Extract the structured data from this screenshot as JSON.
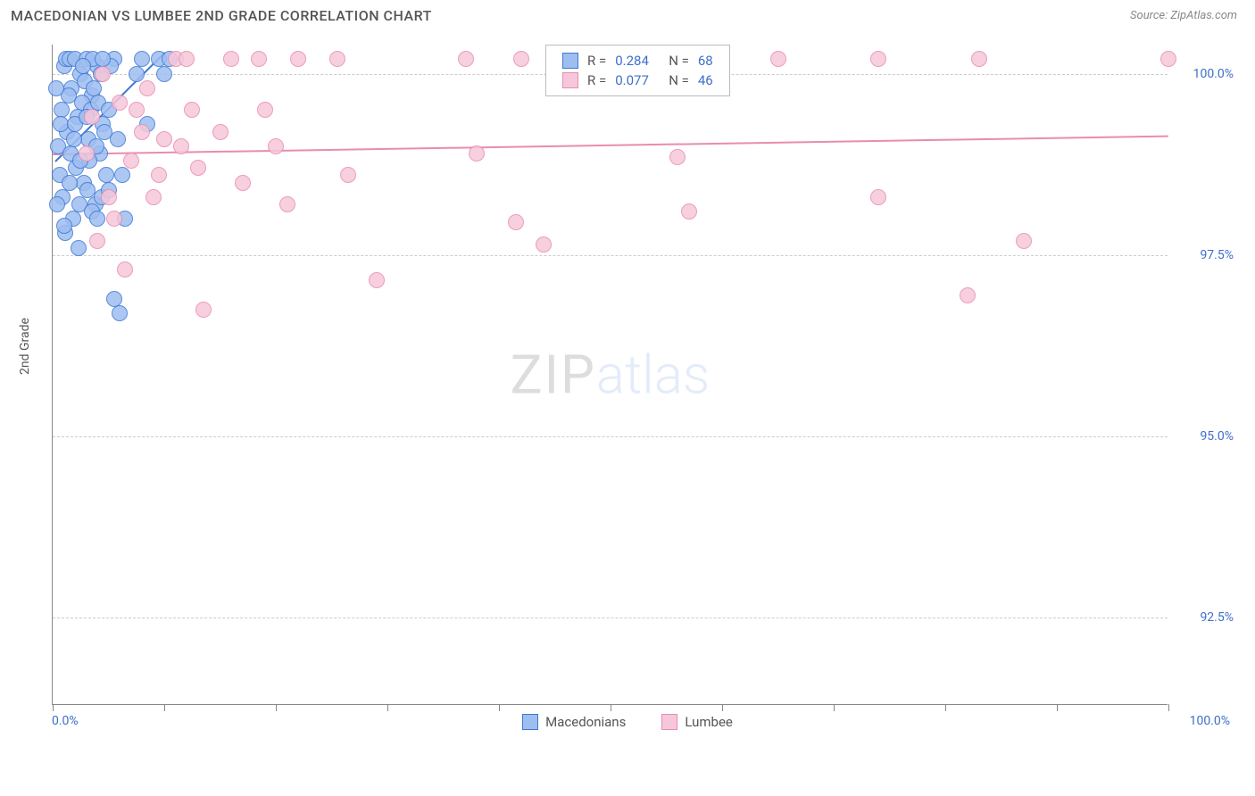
{
  "title": "MACEDONIAN VS LUMBEE 2ND GRADE CORRELATION CHART",
  "source": "Source: ZipAtlas.com",
  "ylabel": "2nd Grade",
  "chart": {
    "type": "scatter",
    "xlim": [
      0,
      100
    ],
    "ylim": [
      91.3,
      100.4
    ],
    "xlabel_min": "0.0%",
    "xlabel_max": "100.0%",
    "ygridlines": [
      {
        "value": 92.5,
        "label": "92.5%"
      },
      {
        "value": 95.0,
        "label": "95.0%"
      },
      {
        "value": 97.5,
        "label": "97.5%"
      },
      {
        "value": 100.0,
        "label": "100.0%"
      }
    ],
    "xticks": [
      0,
      10,
      20,
      30,
      40,
      50,
      60,
      70,
      80,
      90,
      100
    ],
    "background_color": "#ffffff",
    "grid_color": "#cccccc",
    "axis_color": "#888888",
    "tick_label_color": "#3e6fc9",
    "marker_radius": 9,
    "marker_stroke_width": 1.5,
    "marker_fill_opacity": 0.28,
    "trend_line_width": 2,
    "series": [
      {
        "id": "macedonians",
        "label": "Macedonians",
        "stroke_color": "#3e78d6",
        "fill_color": "#9ebef0",
        "R": "0.284",
        "N": "68",
        "trend": {
          "x1": 0.2,
          "y1": 98.8,
          "x2": 10,
          "y2": 100.3
        },
        "points": [
          [
            0.5,
            99.0
          ],
          [
            0.8,
            99.5
          ],
          [
            1.0,
            100.1
          ],
          [
            1.2,
            100.2
          ],
          [
            1.5,
            100.2
          ],
          [
            1.7,
            99.8
          ],
          [
            2.0,
            100.2
          ],
          [
            2.2,
            99.4
          ],
          [
            2.5,
            100.0
          ],
          [
            2.8,
            98.5
          ],
          [
            3.0,
            100.2
          ],
          [
            3.2,
            99.1
          ],
          [
            3.5,
            99.7
          ],
          [
            3.8,
            98.2
          ],
          [
            4.0,
            100.1
          ],
          [
            4.2,
            98.9
          ],
          [
            4.5,
            99.3
          ],
          [
            0.6,
            98.6
          ],
          [
            0.9,
            98.3
          ],
          [
            1.1,
            97.8
          ],
          [
            1.3,
            99.2
          ],
          [
            1.6,
            98.9
          ],
          [
            1.8,
            98.0
          ],
          [
            2.1,
            98.7
          ],
          [
            2.3,
            97.6
          ],
          [
            2.6,
            99.6
          ],
          [
            2.9,
            99.9
          ],
          [
            3.1,
            98.4
          ],
          [
            3.4,
            99.5
          ],
          [
            3.6,
            100.2
          ],
          [
            3.9,
            99.0
          ],
          [
            4.1,
            99.6
          ],
          [
            4.4,
            98.3
          ],
          [
            5.5,
            100.2
          ],
          [
            5.5,
            96.9
          ],
          [
            6.0,
            96.7
          ],
          [
            6.5,
            98.0
          ],
          [
            7.5,
            100.0
          ],
          [
            8.0,
            100.2
          ],
          [
            8.5,
            99.3
          ],
          [
            9.5,
            100.2
          ],
          [
            10.0,
            100.0
          ],
          [
            10.5,
            100.2
          ],
          [
            0.7,
            99.3
          ],
          [
            1.4,
            99.7
          ],
          [
            1.9,
            99.1
          ],
          [
            2.4,
            98.2
          ],
          [
            2.7,
            100.1
          ],
          [
            3.3,
            98.8
          ],
          [
            3.7,
            99.8
          ],
          [
            4.3,
            100.0
          ],
          [
            4.6,
            99.2
          ],
          [
            4.8,
            98.6
          ],
          [
            5.0,
            99.5
          ],
          [
            5.2,
            100.1
          ],
          [
            0.4,
            98.2
          ],
          [
            0.3,
            99.8
          ],
          [
            1.0,
            97.9
          ],
          [
            1.5,
            98.5
          ],
          [
            2.0,
            99.3
          ],
          [
            2.5,
            98.8
          ],
          [
            3.0,
            99.4
          ],
          [
            3.5,
            98.1
          ],
          [
            4.0,
            98.0
          ],
          [
            4.5,
            100.2
          ],
          [
            5.0,
            98.4
          ],
          [
            5.8,
            99.1
          ],
          [
            6.2,
            98.6
          ]
        ]
      },
      {
        "id": "lumbee",
        "label": "Lumbee",
        "stroke_color": "#e88cb0",
        "fill_color": "#f6c7da",
        "R": "0.077",
        "N": "46",
        "trend": {
          "x1": 0,
          "y1": 98.9,
          "x2": 100,
          "y2": 99.15
        },
        "points": [
          [
            3.0,
            98.9
          ],
          [
            4.0,
            97.7
          ],
          [
            5.0,
            98.3
          ],
          [
            6.0,
            99.6
          ],
          [
            6.5,
            97.3
          ],
          [
            7.0,
            98.8
          ],
          [
            8.0,
            99.2
          ],
          [
            8.5,
            99.8
          ],
          [
            9.0,
            98.3
          ],
          [
            10.0,
            99.1
          ],
          [
            11.0,
            100.2
          ],
          [
            12.0,
            100.2
          ],
          [
            12.5,
            99.5
          ],
          [
            13.0,
            98.7
          ],
          [
            13.5,
            96.75
          ],
          [
            15.0,
            99.2
          ],
          [
            16.0,
            100.2
          ],
          [
            17.0,
            98.5
          ],
          [
            18.5,
            100.2
          ],
          [
            19.0,
            99.5
          ],
          [
            20.0,
            99.0
          ],
          [
            21.0,
            98.2
          ],
          [
            22.0,
            100.2
          ],
          [
            25.5,
            100.2
          ],
          [
            26.5,
            98.6
          ],
          [
            29.0,
            97.15
          ],
          [
            37.0,
            100.2
          ],
          [
            38.0,
            98.9
          ],
          [
            41.5,
            97.95
          ],
          [
            42.0,
            100.2
          ],
          [
            44.0,
            97.65
          ],
          [
            56.0,
            98.85
          ],
          [
            57.0,
            98.1
          ],
          [
            65.0,
            100.2
          ],
          [
            74.0,
            100.2
          ],
          [
            74.0,
            98.3
          ],
          [
            82.0,
            96.95
          ],
          [
            83.0,
            100.2
          ],
          [
            87.0,
            97.7
          ],
          [
            100.0,
            100.2
          ],
          [
            3.5,
            99.4
          ],
          [
            4.5,
            100.0
          ],
          [
            5.5,
            98.0
          ],
          [
            7.5,
            99.5
          ],
          [
            9.5,
            98.6
          ],
          [
            11.5,
            99.0
          ]
        ]
      }
    ]
  },
  "watermark": {
    "part1": "ZIP",
    "part2": "atlas"
  },
  "stats_labels": {
    "R": "R =",
    "N": "N ="
  }
}
